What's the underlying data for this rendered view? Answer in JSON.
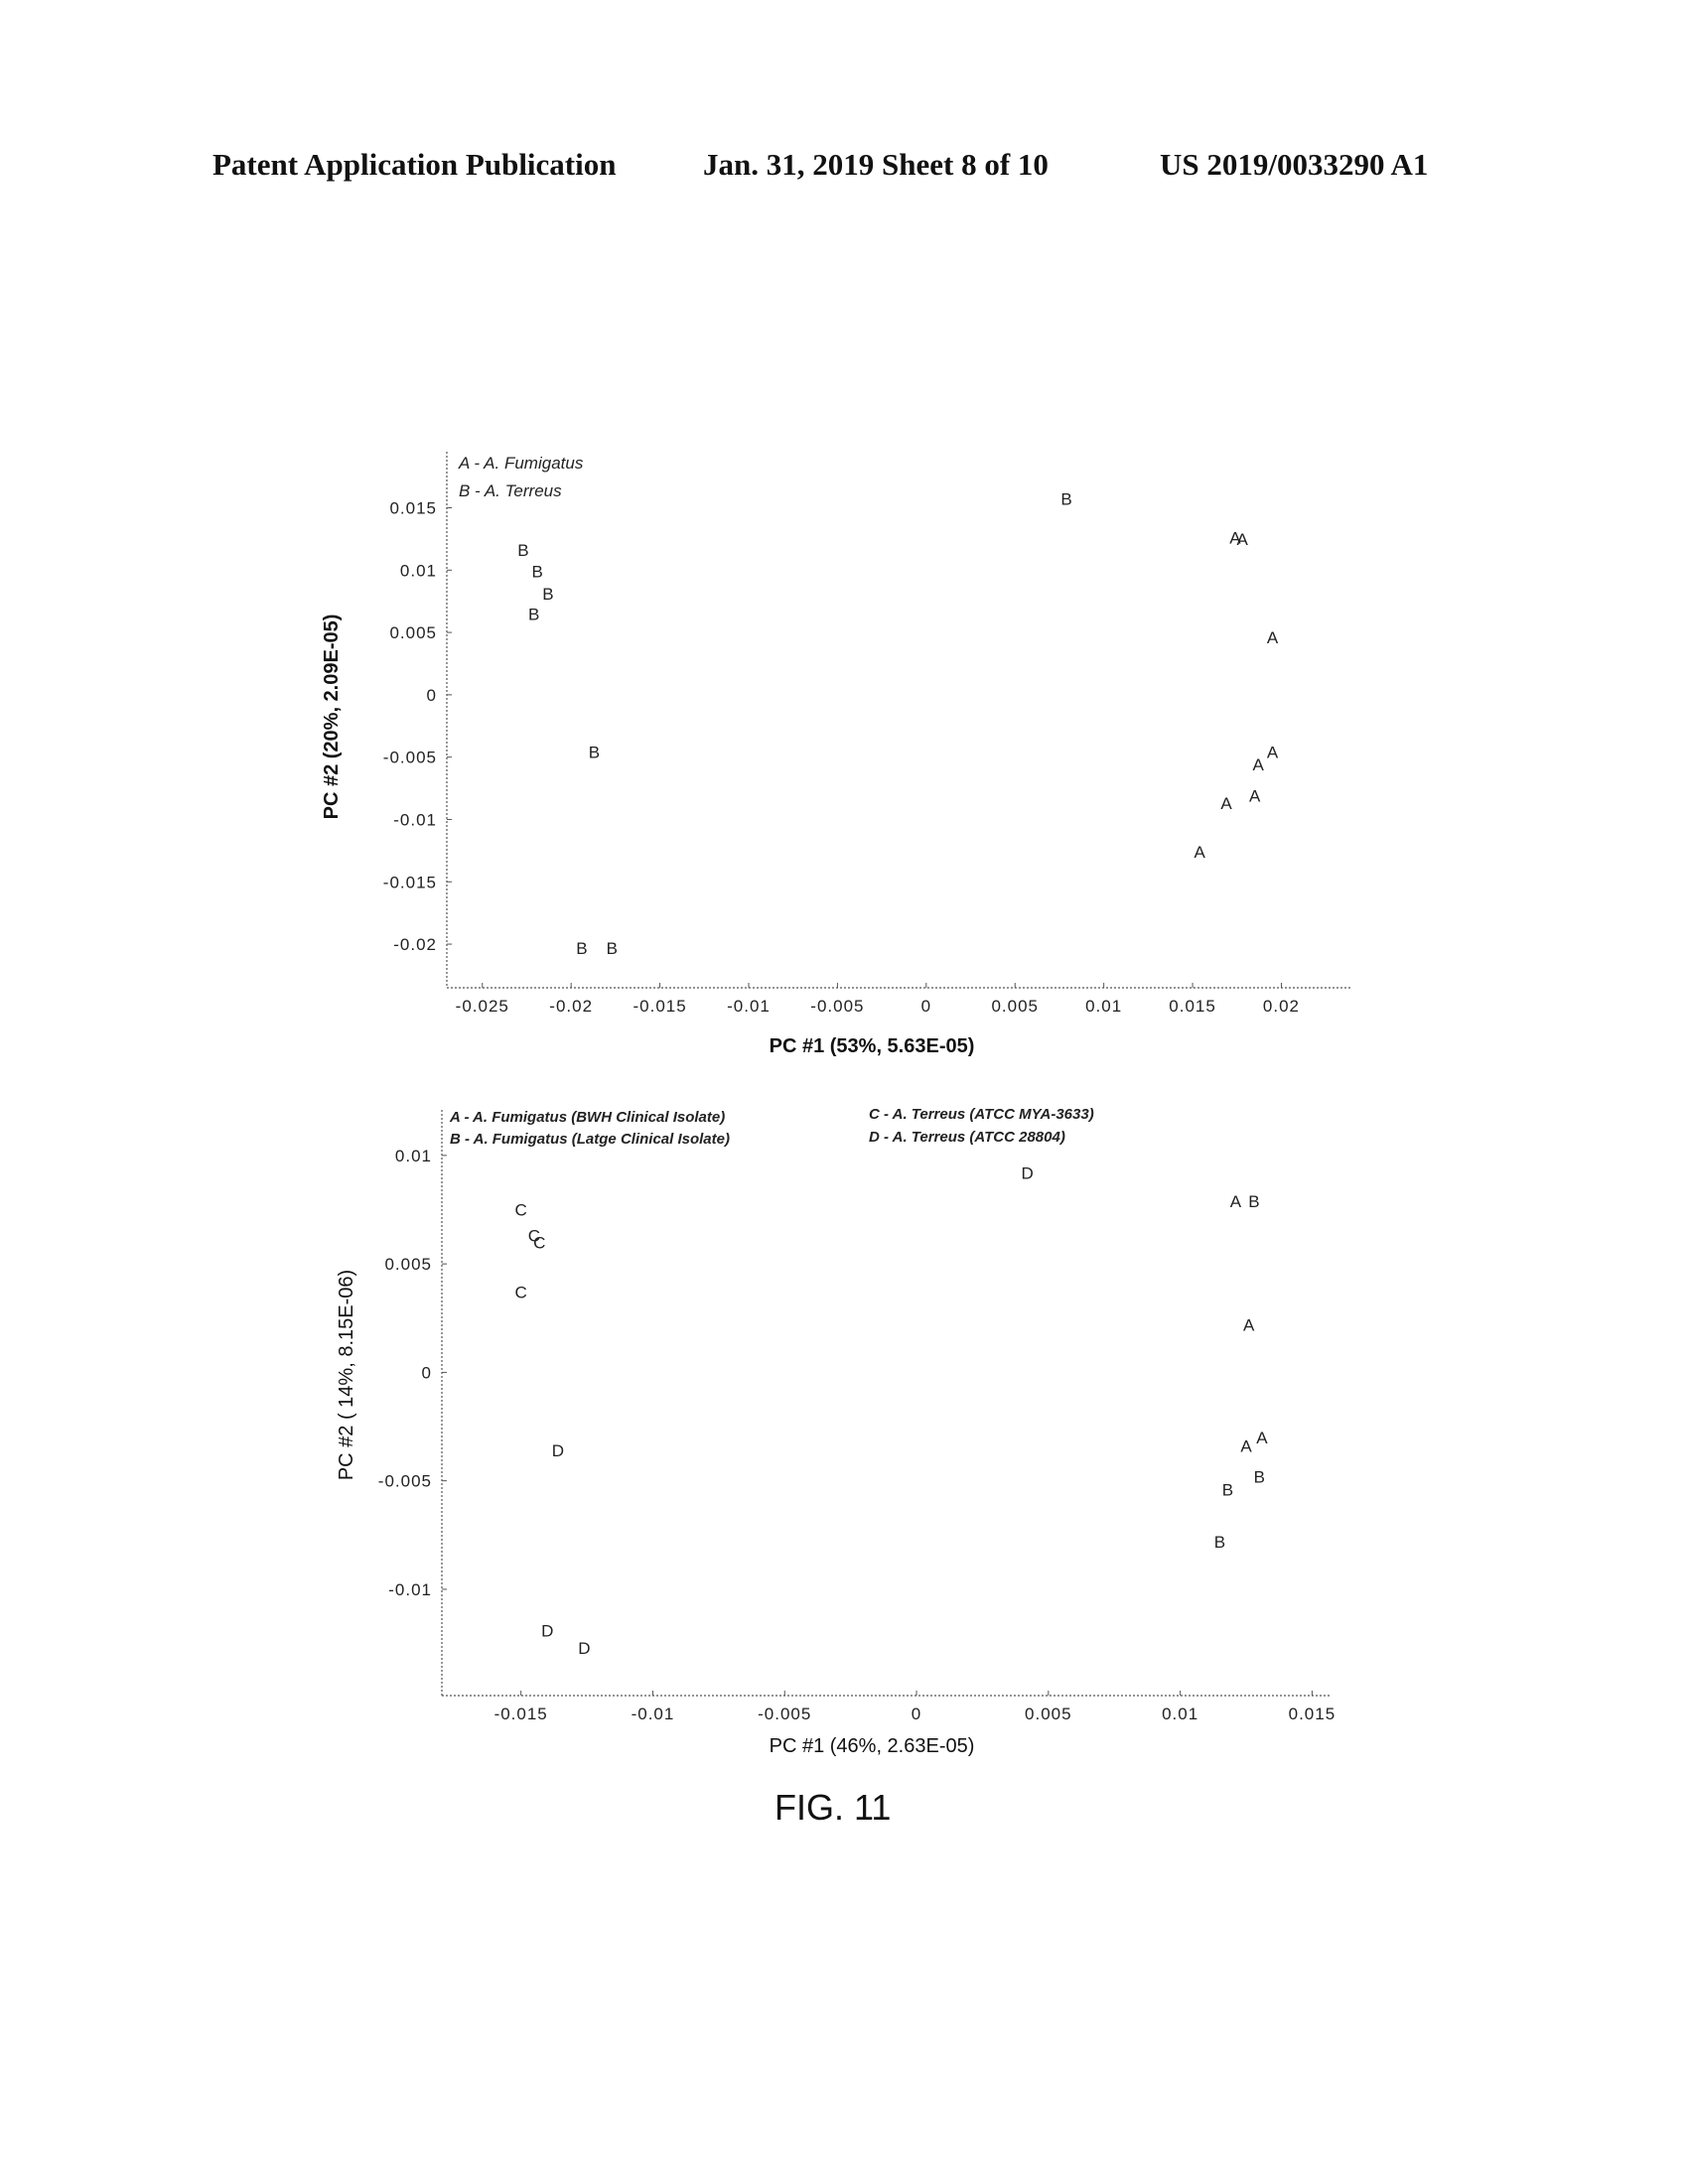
{
  "header": {
    "left": "Patent Application Publication",
    "middle": "Jan. 31, 2019  Sheet 8 of 10",
    "right": "US 2019/0033290 A1"
  },
  "figure_caption": "FIG. 11",
  "chart_data": [
    {
      "type": "scatter",
      "title": "",
      "xlabel": "PC #1 (53%, 5.63E-05)",
      "ylabel": "PC #2 (20%, 2.09E-05)",
      "xlim": [
        -0.027,
        0.024
      ],
      "ylim": [
        -0.0235,
        0.0195
      ],
      "xticks": [
        -0.025,
        -0.02,
        -0.015,
        -0.01,
        -0.005,
        0,
        0.005,
        0.01,
        0.015,
        0.02
      ],
      "xtick_labels": [
        "-0.025",
        "-0.02",
        "-0.015",
        "-0.01",
        "-0.005",
        "0",
        "0.005",
        "0.01",
        "0.015",
        "0.02"
      ],
      "yticks": [
        0.015,
        0.01,
        0.005,
        0,
        -0.005,
        -0.01,
        -0.015,
        -0.02
      ],
      "ytick_labels": [
        "0.015",
        "0.01",
        "0.005",
        "0",
        "-0.005",
        "-0.01",
        "-0.015",
        "-0.02"
      ],
      "legend": [
        {
          "key": "A",
          "label": "A - A. Fumigatus"
        },
        {
          "key": "B",
          "label": "B - A. Terreus"
        }
      ],
      "legend_position": "top-left",
      "points": [
        {
          "label": "B",
          "x": 0.0079,
          "y": 0.0157
        },
        {
          "label": "A",
          "x": 0.0174,
          "y": 0.0126
        },
        {
          "label": "A",
          "x": 0.0178,
          "y": 0.0125
        },
        {
          "label": "A",
          "x": 0.0195,
          "y": 0.0046
        },
        {
          "label": "A",
          "x": 0.0195,
          "y": -0.0046
        },
        {
          "label": "A",
          "x": 0.0187,
          "y": -0.0056
        },
        {
          "label": "A",
          "x": 0.0185,
          "y": -0.0081
        },
        {
          "label": "A",
          "x": 0.0169,
          "y": -0.0087
        },
        {
          "label": "A",
          "x": 0.0154,
          "y": -0.0126
        },
        {
          "label": "B",
          "x": -0.0227,
          "y": 0.0116
        },
        {
          "label": "B",
          "x": -0.0219,
          "y": 0.0099
        },
        {
          "label": "B",
          "x": -0.0213,
          "y": 0.0081
        },
        {
          "label": "B",
          "x": -0.0221,
          "y": 0.0065
        },
        {
          "label": "B",
          "x": -0.0187,
          "y": -0.0046
        },
        {
          "label": "B",
          "x": -0.0194,
          "y": -0.0203
        },
        {
          "label": "B",
          "x": -0.0177,
          "y": -0.0203
        }
      ]
    },
    {
      "type": "scatter",
      "title": "",
      "xlabel": "PC #1 (46%, 2.63E-05)",
      "ylabel": "PC #2 ( 14%, 8.15E-06)",
      "xlim": [
        -0.018,
        0.0157
      ],
      "ylim": [
        -0.0149,
        0.0121
      ],
      "xticks": [
        -0.015,
        -0.01,
        -0.005,
        0,
        0.005,
        0.01,
        0.015
      ],
      "xtick_labels": [
        "-0.015",
        "-0.01",
        "-0.005",
        "0",
        "0.005",
        "0.01",
        "0.015"
      ],
      "yticks": [
        0.01,
        0.005,
        0,
        -0.005,
        -0.01
      ],
      "ytick_labels": [
        "0.01",
        "0.005",
        "0",
        "-0.005",
        "-0.01"
      ],
      "legend": [
        {
          "key": "A",
          "label": "A - A. Fumigatus (BWH Clinical Isolate)"
        },
        {
          "key": "B",
          "label": "B - A. Fumigatus (Latge Clinical Isolate)"
        },
        {
          "key": "C",
          "label": "C - A. Terreus (ATCC MYA-3633)"
        },
        {
          "key": "D",
          "label": "D - A. Terreus (ATCC 28804)"
        }
      ],
      "legend_position": "top",
      "points": [
        {
          "label": "D",
          "x": 0.0042,
          "y": 0.0092
        },
        {
          "label": "A",
          "x": 0.0121,
          "y": 0.0079
        },
        {
          "label": "B",
          "x": 0.0128,
          "y": 0.0079
        },
        {
          "label": "A",
          "x": 0.0126,
          "y": 0.0022
        },
        {
          "label": "A",
          "x": 0.0125,
          "y": -0.0034
        },
        {
          "label": "A",
          "x": 0.0131,
          "y": -0.003
        },
        {
          "label": "B",
          "x": 0.013,
          "y": -0.0048
        },
        {
          "label": "B",
          "x": 0.0118,
          "y": -0.0054
        },
        {
          "label": "B",
          "x": 0.0115,
          "y": -0.0078
        },
        {
          "label": "C",
          "x": -0.015,
          "y": 0.0075
        },
        {
          "label": "C",
          "x": -0.0145,
          "y": 0.0063
        },
        {
          "label": "C",
          "x": -0.0143,
          "y": 0.006
        },
        {
          "label": "C",
          "x": -0.015,
          "y": 0.0037
        },
        {
          "label": "D",
          "x": -0.0136,
          "y": -0.0036
        },
        {
          "label": "D",
          "x": -0.014,
          "y": -0.0119
        },
        {
          "label": "D",
          "x": -0.0126,
          "y": -0.0127
        }
      ]
    }
  ]
}
